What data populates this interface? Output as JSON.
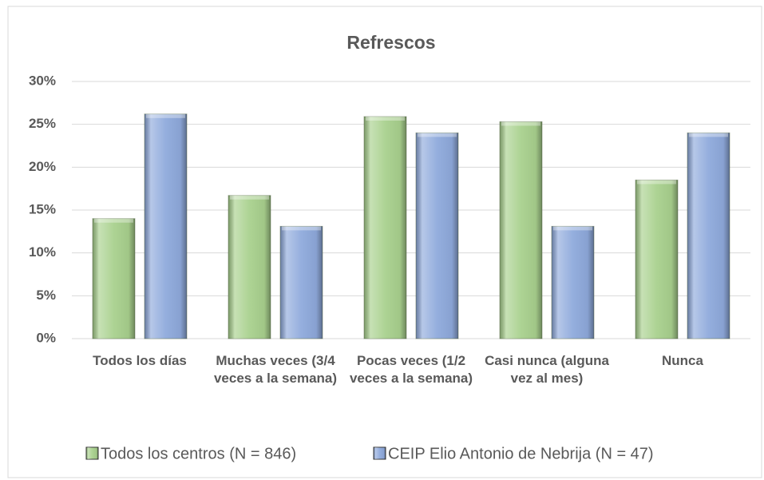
{
  "chart_data": {
    "type": "bar",
    "title": "Refrescos",
    "categories": [
      "Todos los días",
      "Muchas veces (3/4 veces a la semana)",
      "Pocas veces (1/2 veces a la semana)",
      "Casi nunca (alguna vez al mes)",
      "Nunca"
    ],
    "series": [
      {
        "name": "Todos los centros (N = 846)",
        "color": "#a9d18e",
        "values": [
          14,
          16.7,
          25.9,
          25.3,
          18.5
        ]
      },
      {
        "name": "CEIP Elio Antonio de Nebrija (N = 47)",
        "color": "#8faadc",
        "values": [
          26.2,
          13.1,
          24,
          13.1,
          24
        ]
      }
    ],
    "ylim": [
      0,
      30
    ],
    "yticks": [
      {
        "value": 0,
        "label": "0%"
      },
      {
        "value": 5,
        "label": "5%"
      },
      {
        "value": 10,
        "label": "10%"
      },
      {
        "value": 15,
        "label": "15%"
      },
      {
        "value": 20,
        "label": "20%"
      },
      {
        "value": 25,
        "label": "25%"
      },
      {
        "value": 30,
        "label": "30%"
      }
    ],
    "grid": true,
    "legend": "bottom"
  }
}
